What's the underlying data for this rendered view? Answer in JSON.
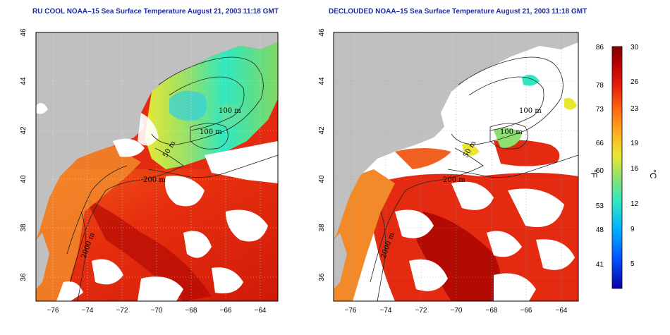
{
  "panels": [
    {
      "id": "left",
      "title": "RU COOL NOAA–15 Sea Surface Temperature August 21, 2003 11:18 GMT",
      "contour_labels": [
        "100 m",
        "100 m",
        "50 m",
        "200 m",
        "2000 m"
      ]
    },
    {
      "id": "right",
      "title": "DECLOUDED NOAA–15 Sea Surface Temperature August 21, 2003 11:18 GMT",
      "contour_labels": [
        "100 m",
        "100 m",
        "50 m",
        "200 m",
        "2000 m"
      ]
    }
  ],
  "axes": {
    "x_ticks": [
      "−76",
      "−74",
      "−72",
      "−70",
      "−68",
      "−66",
      "−64"
    ],
    "y_ticks": [
      "46",
      "44",
      "42",
      "40",
      "38",
      "36"
    ],
    "x_range": [
      -77,
      -63
    ],
    "y_range": [
      35,
      46
    ]
  },
  "colorbar": {
    "unit_f": "°F",
    "unit_c": "°C",
    "f_ticks": [
      "86",
      "78",
      "73",
      "66",
      "60",
      "53",
      "48",
      "41"
    ],
    "c_ticks": [
      "30",
      "26",
      "23",
      "19",
      "16",
      "12",
      "9",
      "5"
    ],
    "range_c": [
      2,
      30
    ],
    "colors": [
      "#0a00a8",
      "#0050ff",
      "#00b4ff",
      "#30e8c0",
      "#8fe070",
      "#e8e830",
      "#ffb020",
      "#ff6a10",
      "#e81c0c",
      "#b80000",
      "#800000"
    ]
  },
  "colors": {
    "land": "#c0c0c0",
    "ocean_warm": "#e42a10",
    "cloud": "#ffffff",
    "title": "#1f2a9e"
  }
}
